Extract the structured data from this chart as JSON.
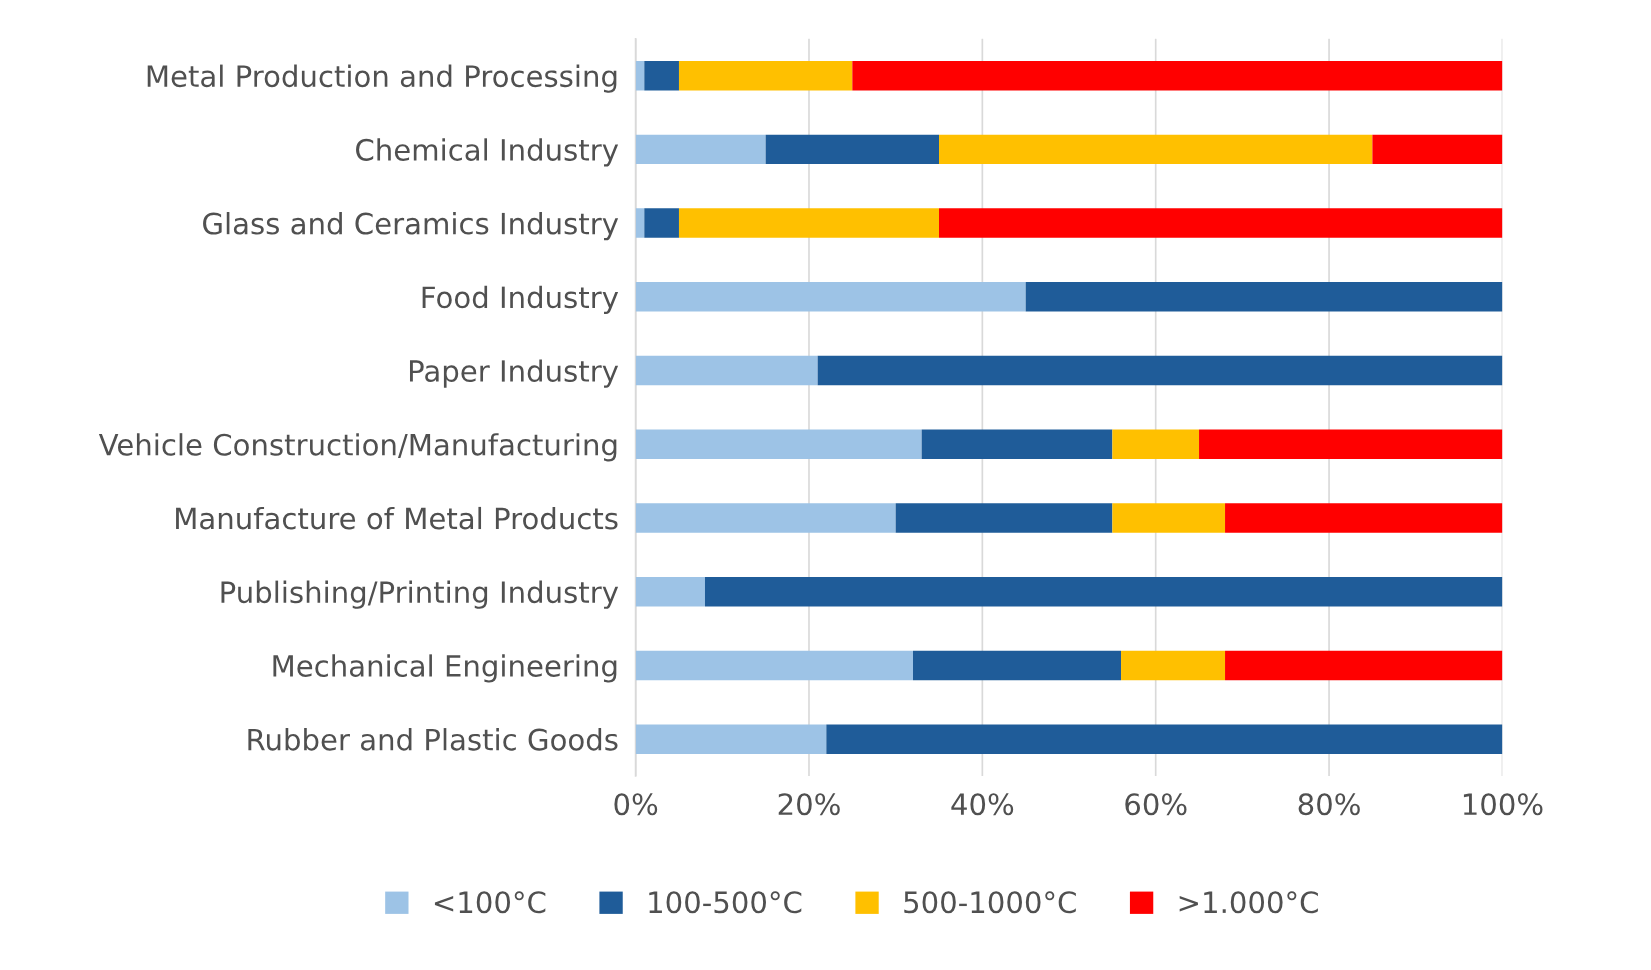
{
  "chart_data": {
    "type": "bar",
    "orientation": "horizontal",
    "stacked": true,
    "categories": [
      "Metal Production and Processing",
      "Chemical Industry",
      "Glass and Ceramics Industry",
      "Food Industry",
      "Paper Industry",
      "Vehicle Construction/Manufacturing",
      "Manufacture of Metal Products",
      "Publishing/Printing Industry",
      "Mechanical Engineering",
      "Rubber and Plastic Goods"
    ],
    "series": [
      {
        "name": "<100°C",
        "color": "#9dc3e6",
        "values": [
          1,
          15,
          1,
          45,
          21,
          33,
          30,
          8,
          32,
          22
        ]
      },
      {
        "name": "100-500°C",
        "color": "#1f5c99",
        "values": [
          4,
          20,
          4,
          55,
          79,
          22,
          25,
          92,
          24,
          78
        ]
      },
      {
        "name": "500-1000°C",
        "color": "#ffc000",
        "values": [
          20,
          50,
          30,
          null,
          null,
          10,
          13,
          null,
          12,
          null
        ]
      },
      {
        "name": ">1.000°C",
        "color": "#ff0000",
        "values": [
          75,
          15,
          65,
          null,
          null,
          35,
          32,
          null,
          32,
          null
        ]
      }
    ],
    "xlim": [
      0,
      100
    ],
    "xticks": [
      {
        "value": 0,
        "label": "0%"
      },
      {
        "value": 20,
        "label": "20%"
      },
      {
        "value": 40,
        "label": "40%"
      },
      {
        "value": 60,
        "label": "60%"
      },
      {
        "value": 80,
        "label": "80%"
      },
      {
        "value": 100,
        "label": "100%"
      }
    ],
    "grid": "x",
    "legend": "bottom"
  }
}
